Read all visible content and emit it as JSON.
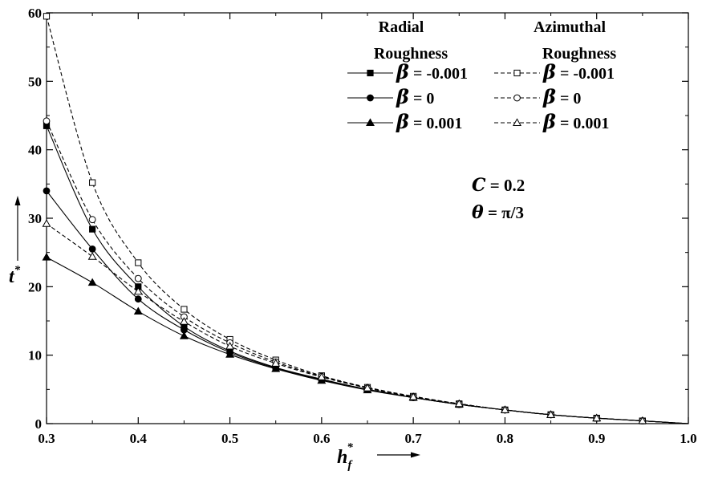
{
  "chart_data": {
    "type": "line",
    "xlabel": "h",
    "xlabel_subscript": "f",
    "xlabel_superscript": "*",
    "ylabel": "t",
    "ylabel_superscript": "*",
    "xlim": [
      0.3,
      1.0
    ],
    "ylim": [
      0,
      60
    ],
    "xticks": [
      "0.3",
      "0.4",
      "0.5",
      "0.6",
      "0.7",
      "0.8",
      "0.9",
      "1.0"
    ],
    "yticks": [
      "0",
      "10",
      "20",
      "30",
      "40",
      "50",
      "60"
    ],
    "legend_position": "top-right",
    "legend_headers": {
      "radial_line1": "Radial",
      "radial_line2": "Roughness",
      "azimuthal_line1": "Azimuthal",
      "azimuthal_line2": "Roughness"
    },
    "series": [
      {
        "group": "radial",
        "label_symbol": "β",
        "label_text": " = -0.001",
        "marker": "filled-square",
        "dash": "solid",
        "x": [
          0.3,
          0.35,
          0.4,
          0.45,
          0.5,
          0.55,
          0.6,
          0.65,
          0.7,
          0.75,
          0.8,
          0.85,
          0.9,
          0.95,
          1.0
        ],
        "values": [
          43.5,
          28.4,
          20.0,
          14.2,
          10.6,
          8.2,
          6.5,
          5.0,
          3.8,
          2.8,
          2.0,
          1.3,
          0.8,
          0.4,
          0.0
        ]
      },
      {
        "group": "radial",
        "label_symbol": "β",
        "label_text": " =  0",
        "marker": "filled-circle",
        "dash": "solid",
        "x": [
          0.3,
          0.35,
          0.4,
          0.45,
          0.5,
          0.55,
          0.6,
          0.65,
          0.7,
          0.75,
          0.8,
          0.85,
          0.9,
          0.95,
          1.0
        ],
        "values": [
          34.0,
          25.5,
          18.2,
          13.7,
          10.4,
          8.1,
          6.4,
          5.0,
          3.8,
          2.8,
          2.0,
          1.3,
          0.8,
          0.4,
          0.0
        ]
      },
      {
        "group": "radial",
        "label_symbol": "β",
        "label_text": " =  0.001",
        "marker": "filled-triangle",
        "dash": "solid",
        "x": [
          0.3,
          0.35,
          0.4,
          0.45,
          0.5,
          0.55,
          0.6,
          0.65,
          0.7,
          0.75,
          0.8,
          0.85,
          0.9,
          0.95,
          1.0
        ],
        "values": [
          24.3,
          20.6,
          16.4,
          12.8,
          10.1,
          8.0,
          6.3,
          4.9,
          3.8,
          2.8,
          2.0,
          1.3,
          0.8,
          0.4,
          0.0
        ]
      },
      {
        "group": "azimuthal",
        "label_symbol": "β",
        "label_text": " = -0.001",
        "marker": "open-square",
        "dash": "dashed",
        "x": [
          0.3,
          0.35,
          0.4,
          0.45,
          0.5,
          0.55,
          0.6,
          0.65,
          0.7,
          0.75,
          0.8,
          0.85,
          0.9,
          0.95,
          1.0
        ],
        "values": [
          59.5,
          35.2,
          23.5,
          16.7,
          12.3,
          9.3,
          7.0,
          5.3,
          4.0,
          2.9,
          2.0,
          1.3,
          0.8,
          0.4,
          0.0
        ]
      },
      {
        "group": "azimuthal",
        "label_symbol": "β",
        "label_text": " =  0",
        "marker": "open-circle",
        "dash": "dashed",
        "x": [
          0.3,
          0.35,
          0.4,
          0.45,
          0.5,
          0.55,
          0.6,
          0.65,
          0.7,
          0.75,
          0.8,
          0.85,
          0.9,
          0.95,
          1.0
        ],
        "values": [
          44.2,
          29.8,
          21.2,
          15.6,
          11.8,
          9.0,
          6.9,
          5.2,
          3.9,
          2.9,
          2.0,
          1.3,
          0.8,
          0.4,
          0.0
        ]
      },
      {
        "group": "azimuthal",
        "label_symbol": "β",
        "label_text": " =  0.001",
        "marker": "open-triangle",
        "dash": "dashed",
        "x": [
          0.3,
          0.35,
          0.4,
          0.45,
          0.5,
          0.55,
          0.6,
          0.65,
          0.7,
          0.75,
          0.8,
          0.85,
          0.9,
          0.95,
          1.0
        ],
        "values": [
          29.2,
          24.4,
          19.3,
          14.9,
          11.3,
          8.8,
          6.8,
          5.2,
          3.9,
          2.9,
          2.0,
          1.3,
          0.8,
          0.4,
          0.0
        ]
      }
    ],
    "annotations": [
      {
        "symbol": "C",
        "text": " = 0.2"
      },
      {
        "symbol": "θ",
        "text": " = π/3"
      }
    ]
  }
}
